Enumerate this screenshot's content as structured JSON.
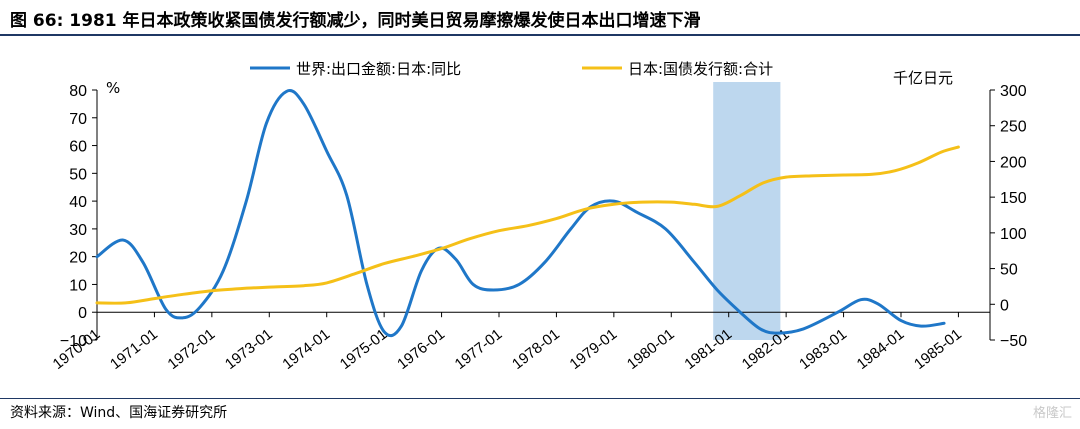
{
  "header": {
    "title": "图 66:  1981 年日本政策收紧国债发行额减少，同时美日贸易摩擦爆发使日本出口增速下滑"
  },
  "footer": {
    "source": "资料来源：Wind、国海证券研究所",
    "watermark": "格隆汇"
  },
  "chart_data": {
    "type": "line",
    "title": "",
    "left_unit": "%",
    "right_unit": "千亿日元",
    "x_tick_labels": [
      "1970-01",
      "1971-01",
      "1972-01",
      "1973-01",
      "1974-01",
      "1975-01",
      "1976-01",
      "1977-01",
      "1978-01",
      "1979-01",
      "1980-01",
      "1981-01",
      "1982-01",
      "1983-01",
      "1984-01",
      "1985-01"
    ],
    "left_axis": {
      "ylim": [
        -10,
        80
      ],
      "ticks": [
        -10,
        0,
        10,
        20,
        30,
        40,
        50,
        60,
        70,
        80
      ]
    },
    "right_axis": {
      "ylim": [
        -50,
        300
      ],
      "ticks": [
        -50,
        0,
        50,
        100,
        150,
        200,
        250,
        300
      ]
    },
    "highlight": {
      "label": "1981-01",
      "x_start": 1980.73,
      "x_end": 1981.9,
      "color": "#bdd7ee"
    },
    "series": [
      {
        "name": "世界:出口金额:日本:同比",
        "axis": "left",
        "color": "#1f77c8",
        "points": [
          [
            1970.0,
            20
          ],
          [
            1970.45,
            26
          ],
          [
            1970.8,
            18
          ],
          [
            1971.2,
            1
          ],
          [
            1971.5,
            -2
          ],
          [
            1971.8,
            2
          ],
          [
            1972.2,
            15
          ],
          [
            1972.6,
            40
          ],
          [
            1972.95,
            68
          ],
          [
            1973.3,
            79.5
          ],
          [
            1973.6,
            75
          ],
          [
            1974.0,
            58
          ],
          [
            1974.35,
            42
          ],
          [
            1974.7,
            10
          ],
          [
            1975.0,
            -7
          ],
          [
            1975.3,
            -5
          ],
          [
            1975.65,
            15
          ],
          [
            1975.95,
            23
          ],
          [
            1976.25,
            19
          ],
          [
            1976.55,
            10
          ],
          [
            1976.9,
            8
          ],
          [
            1977.35,
            10
          ],
          [
            1977.8,
            18
          ],
          [
            1978.25,
            30
          ],
          [
            1978.6,
            38
          ],
          [
            1979.0,
            40
          ],
          [
            1979.4,
            36
          ],
          [
            1979.9,
            30
          ],
          [
            1980.4,
            18
          ],
          [
            1980.8,
            8
          ],
          [
            1981.2,
            0
          ],
          [
            1981.55,
            -6
          ],
          [
            1981.85,
            -7.5
          ],
          [
            1982.3,
            -6
          ],
          [
            1982.9,
            0
          ],
          [
            1983.3,
            4.5
          ],
          [
            1983.6,
            3
          ],
          [
            1984.0,
            -3
          ],
          [
            1984.35,
            -5
          ],
          [
            1984.75,
            -4
          ]
        ]
      },
      {
        "name": "日本:国债发行额:合计",
        "axis": "right",
        "color": "#f5c018",
        "points": [
          [
            1970.0,
            2
          ],
          [
            1970.5,
            2
          ],
          [
            1971.0,
            8
          ],
          [
            1971.5,
            14
          ],
          [
            1972.0,
            19
          ],
          [
            1972.5,
            22
          ],
          [
            1973.0,
            24
          ],
          [
            1973.6,
            26
          ],
          [
            1974.0,
            30
          ],
          [
            1974.5,
            43
          ],
          [
            1975.0,
            57
          ],
          [
            1975.5,
            67
          ],
          [
            1976.0,
            78
          ],
          [
            1976.5,
            92
          ],
          [
            1977.0,
            103
          ],
          [
            1977.5,
            110
          ],
          [
            1978.0,
            120
          ],
          [
            1978.5,
            133
          ],
          [
            1979.0,
            140
          ],
          [
            1979.5,
            143
          ],
          [
            1980.0,
            143
          ],
          [
            1980.4,
            140
          ],
          [
            1980.8,
            137
          ],
          [
            1981.2,
            152
          ],
          [
            1981.6,
            170
          ],
          [
            1982.0,
            178
          ],
          [
            1982.5,
            180
          ],
          [
            1983.0,
            181
          ],
          [
            1983.5,
            182
          ],
          [
            1983.9,
            187
          ],
          [
            1984.3,
            198
          ],
          [
            1984.7,
            213
          ],
          [
            1985.0,
            220
          ]
        ]
      }
    ]
  }
}
